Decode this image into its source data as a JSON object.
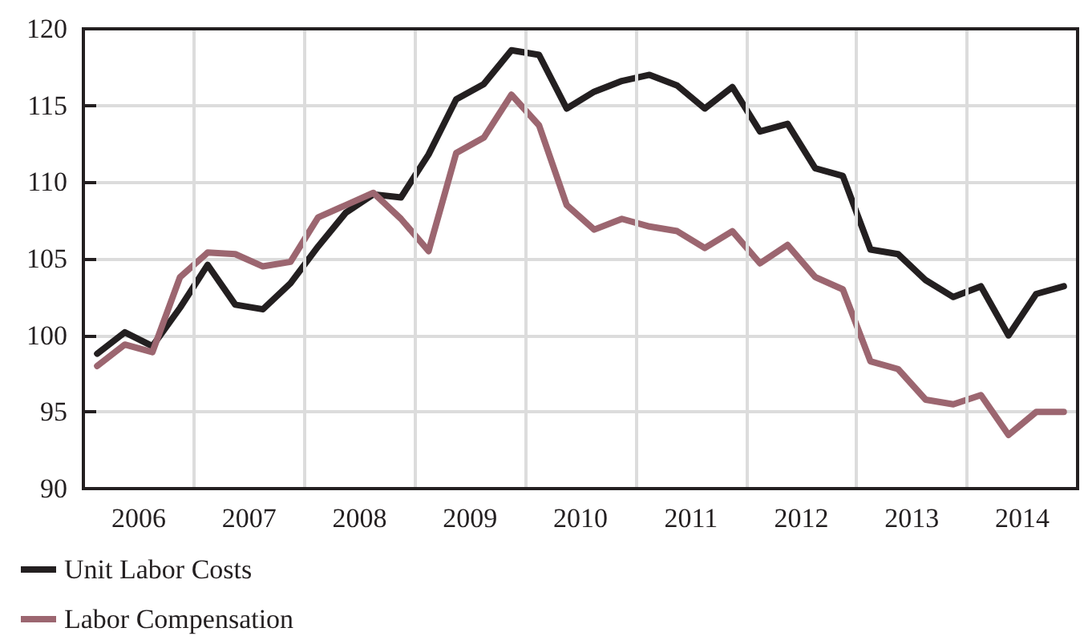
{
  "chart_data": {
    "type": "line",
    "x": [
      2006.125,
      2006.375,
      2006.625,
      2006.875,
      2007.125,
      2007.375,
      2007.625,
      2007.875,
      2008.125,
      2008.375,
      2008.625,
      2008.875,
      2009.125,
      2009.375,
      2009.625,
      2009.875,
      2010.125,
      2010.375,
      2010.625,
      2010.875,
      2011.125,
      2011.375,
      2011.625,
      2011.875,
      2012.125,
      2012.375,
      2012.625,
      2012.875,
      2013.125,
      2013.375,
      2013.625,
      2013.875,
      2014.125,
      2014.375,
      2014.625,
      2014.875
    ],
    "series": [
      {
        "name": "Unit Labor Costs",
        "color": "#231f20",
        "values": [
          98.8,
          100.2,
          99.3,
          101.8,
          104.6,
          102.0,
          101.7,
          103.4,
          105.8,
          108.0,
          109.2,
          109.0,
          111.8,
          115.4,
          116.4,
          118.6,
          118.3,
          114.8,
          115.9,
          116.6,
          117.0,
          116.3,
          114.8,
          116.2,
          113.3,
          113.8,
          110.9,
          110.4,
          105.6,
          105.3,
          103.6,
          102.5,
          103.2,
          100.0,
          102.7,
          103.2
        ]
      },
      {
        "name": "Labor Compensation",
        "color": "#9c6670",
        "values": [
          98.0,
          99.4,
          98.9,
          103.8,
          105.4,
          105.3,
          104.5,
          104.8,
          107.7,
          108.5,
          109.3,
          107.6,
          105.5,
          111.9,
          112.9,
          115.7,
          113.7,
          108.5,
          106.9,
          107.6,
          107.1,
          106.8,
          105.7,
          106.8,
          104.7,
          105.9,
          103.8,
          103.0,
          98.3,
          97.8,
          95.8,
          95.5,
          96.1,
          93.5,
          95.0,
          95.0
        ]
      }
    ],
    "xlim": [
      2006,
      2015
    ],
    "xticks": [
      {
        "value": 2006.5,
        "label": "2006"
      },
      {
        "value": 2007,
        "label": null
      },
      {
        "value": 2007.5,
        "label": "2007"
      },
      {
        "value": 2008,
        "label": null
      },
      {
        "value": 2008.5,
        "label": "2008"
      },
      {
        "value": 2009,
        "label": null
      },
      {
        "value": 2009.5,
        "label": "2009"
      },
      {
        "value": 2010,
        "label": null
      },
      {
        "value": 2010.5,
        "label": "2010"
      },
      {
        "value": 2011,
        "label": null
      },
      {
        "value": 2011.5,
        "label": "2011"
      },
      {
        "value": 2012,
        "label": null
      },
      {
        "value": 2012.5,
        "label": "2012"
      },
      {
        "value": 2013,
        "label": null
      },
      {
        "value": 2013.5,
        "label": "2013"
      },
      {
        "value": 2014,
        "label": null
      },
      {
        "value": 2014.5,
        "label": "2014"
      }
    ],
    "ylim": [
      90,
      120
    ],
    "yticks": [
      90,
      95,
      100,
      105,
      110,
      115,
      120
    ],
    "grid": true,
    "legend": "bottom left",
    "marker": "none",
    "line_style": "solid"
  }
}
